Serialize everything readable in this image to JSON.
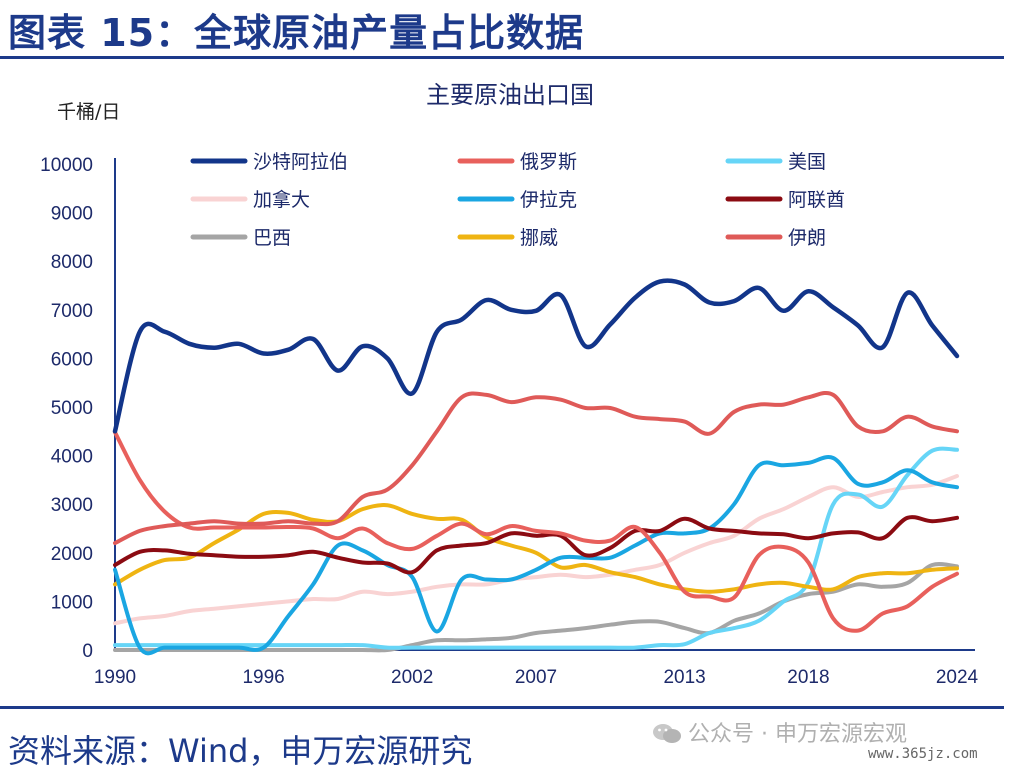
{
  "header": {
    "title": "图表 15：全球原油产量占比数据"
  },
  "footer": {
    "source": "资料来源：Wind，申万宏源研究",
    "watermark": "公众号 · 申万宏源宏观",
    "watermark_url": "www.365jz.com"
  },
  "chart_data": {
    "type": "line",
    "title": "主要原油出口国",
    "ylabel": "千桶/日",
    "xlabel": "",
    "ylim": [
      0,
      10000
    ],
    "yticks": [
      "10000",
      "9000",
      "8000",
      "7000",
      "6000",
      "5000",
      "4000",
      "3000",
      "2000",
      "1000",
      "0"
    ],
    "xlim": [
      1990,
      2024
    ],
    "xticks": [
      "1990",
      "1996",
      "2002",
      "2007",
      "2013",
      "2018",
      "2024"
    ],
    "x": [
      1990,
      1991,
      1992,
      1993,
      1994,
      1995,
      1996,
      1997,
      1998,
      1999,
      2000,
      2001,
      2002,
      2003,
      2004,
      2005,
      2006,
      2007,
      2008,
      2009,
      2010,
      2011,
      2012,
      2013,
      2014,
      2015,
      2016,
      2017,
      2018,
      2019,
      2020,
      2021,
      2022,
      2023,
      2024
    ],
    "series": [
      {
        "name": "沙特阿拉伯",
        "color": "#12358a",
        "values": [
          4500,
          6550,
          6550,
          6300,
          6220,
          6300,
          6100,
          6180,
          6400,
          5750,
          6250,
          6000,
          5280,
          6550,
          6800,
          7200,
          7000,
          6980,
          7300,
          6250,
          6700,
          7250,
          7580,
          7520,
          7150,
          7180,
          7450,
          6980,
          7380,
          7050,
          6680,
          6230,
          7350,
          6680,
          6050
        ]
      },
      {
        "name": "俄罗斯",
        "color": "#e8605c",
        "values": [
          4480,
          3500,
          2850,
          2520,
          2520,
          2520,
          2520,
          2530,
          2500,
          2300,
          2500,
          2200,
          2080,
          2350,
          2600,
          2380,
          2550,
          2450,
          2400,
          2250,
          2250,
          2530,
          2000,
          1200,
          1100,
          1080,
          1950,
          2120,
          1800,
          650,
          400,
          750,
          900,
          1300,
          1570
        ]
      },
      {
        "name": "美国",
        "color": "#66d5f7",
        "values": [
          100,
          100,
          100,
          100,
          100,
          100,
          100,
          100,
          100,
          100,
          100,
          50,
          50,
          50,
          50,
          50,
          50,
          50,
          50,
          50,
          50,
          50,
          100,
          120,
          350,
          450,
          600,
          1000,
          1400,
          3000,
          3200,
          2950,
          3600,
          4100,
          4120
        ]
      },
      {
        "name": "加拿大",
        "color": "#f9d3d3",
        "values": [
          550,
          650,
          700,
          800,
          850,
          900,
          950,
          1000,
          1050,
          1050,
          1200,
          1150,
          1200,
          1300,
          1350,
          1350,
          1450,
          1500,
          1550,
          1500,
          1550,
          1650,
          1750,
          2000,
          2200,
          2350,
          2700,
          2900,
          3150,
          3350,
          3150,
          3250,
          3350,
          3400,
          3580
        ]
      },
      {
        "name": "伊拉克",
        "color": "#1aa6e2",
        "values": [
          1650,
          50,
          50,
          50,
          50,
          50,
          50,
          700,
          1350,
          2150,
          2050,
          1750,
          1500,
          380,
          1450,
          1450,
          1450,
          1650,
          1900,
          1900,
          1900,
          2150,
          2400,
          2400,
          2500,
          3000,
          3800,
          3800,
          3850,
          3950,
          3420,
          3450,
          3700,
          3450,
          3350
        ]
      },
      {
        "name": "阿联酋",
        "color": "#8b0b12",
        "values": [
          1750,
          2020,
          2050,
          1980,
          1950,
          1920,
          1920,
          1950,
          2020,
          1900,
          1800,
          1780,
          1600,
          2050,
          2150,
          2200,
          2400,
          2350,
          2350,
          1950,
          2100,
          2450,
          2450,
          2700,
          2500,
          2450,
          2400,
          2380,
          2300,
          2400,
          2420,
          2300,
          2720,
          2650,
          2720
        ]
      },
      {
        "name": "巴西",
        "color": "#a5a5a5",
        "values": [
          0,
          0,
          0,
          0,
          0,
          0,
          0,
          0,
          0,
          0,
          0,
          0,
          100,
          200,
          200,
          220,
          250,
          350,
          400,
          450,
          520,
          580,
          580,
          450,
          350,
          600,
          750,
          1000,
          1150,
          1200,
          1350,
          1300,
          1380,
          1750,
          1720
        ]
      },
      {
        "name": "挪威",
        "color": "#efb412",
        "values": [
          1350,
          1650,
          1850,
          1900,
          2200,
          2480,
          2800,
          2820,
          2680,
          2650,
          2900,
          2980,
          2800,
          2700,
          2680,
          2320,
          2150,
          2000,
          1700,
          1750,
          1600,
          1500,
          1350,
          1250,
          1200,
          1250,
          1350,
          1380,
          1300,
          1250,
          1500,
          1580,
          1580,
          1650,
          1680
        ]
      },
      {
        "name": "伊朗",
        "color": "#df5a58",
        "values": [
          2200,
          2450,
          2550,
          2600,
          2650,
          2600,
          2600,
          2650,
          2600,
          2650,
          3150,
          3300,
          3800,
          4500,
          5200,
          5250,
          5100,
          5200,
          5150,
          4980,
          4980,
          4800,
          4750,
          4700,
          4450,
          4900,
          5050,
          5050,
          5200,
          5250,
          4600,
          4500,
          4800,
          4600,
          4500
        ]
      }
    ]
  }
}
